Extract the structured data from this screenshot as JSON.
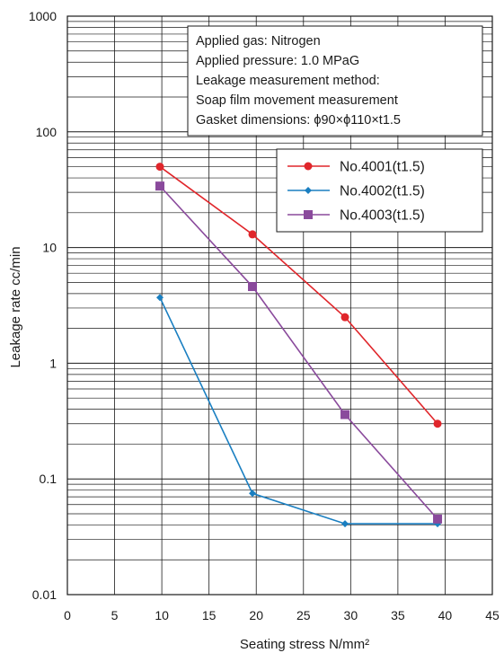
{
  "chart_data": {
    "type": "line",
    "xlabel": "Seating stress N/mm²",
    "ylabel": "Leakage rate cc/min",
    "x_ticks": [
      "0",
      "5",
      "10",
      "15",
      "20",
      "25",
      "30",
      "35",
      "40",
      "45"
    ],
    "y_ticks": [
      "0.01",
      "0.1",
      "1",
      "10",
      "100",
      "1000"
    ],
    "xlim": [
      0,
      45
    ],
    "ylim": [
      0.01,
      1000
    ],
    "y_scale": "log",
    "grid": true,
    "legend_position": "top-right",
    "notes": [
      "Applied gas: Nitrogen",
      "Applied pressure: 1.0 MPaG",
      "Leakage measurement method:",
      "Soap film movement measurement",
      "Gasket dimensions: ϕ90×ϕ110×t1.5"
    ],
    "series": [
      {
        "name": "No.4001(t1.5)",
        "color": "#e0262b",
        "marker": "circle",
        "x": [
          9.8,
          19.6,
          29.4,
          39.2
        ],
        "y": [
          50,
          13,
          2.5,
          0.3
        ]
      },
      {
        "name": "No.4002(t1.5)",
        "color": "#1a7fc1",
        "marker": "diamond",
        "x": [
          9.8,
          19.6,
          29.4,
          39.2
        ],
        "y": [
          3.7,
          0.075,
          0.041,
          0.041
        ]
      },
      {
        "name": "No.4003(t1.5)",
        "color": "#8a4a9c",
        "marker": "square",
        "x": [
          9.8,
          19.6,
          29.4,
          39.2
        ],
        "y": [
          34,
          4.6,
          0.36,
          0.045
        ]
      }
    ]
  }
}
